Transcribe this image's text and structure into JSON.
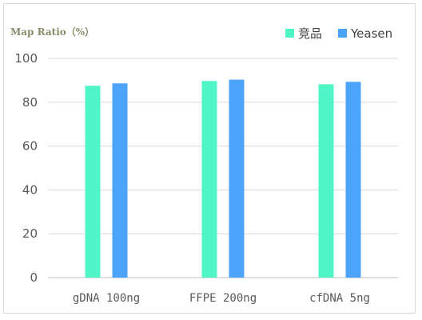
{
  "chart_data": {
    "type": "bar",
    "ylabel": "Map Ratio（%）",
    "categories": [
      "gDNA 100ng",
      "FFPE 200ng",
      "cfDNA 5ng"
    ],
    "series": [
      {
        "name": "竞品",
        "color": "#4FF5C7",
        "values": [
          87.5,
          89.7,
          88.2
        ]
      },
      {
        "name": "Yeasen",
        "color": "#4CA3FA",
        "values": [
          88.6,
          90.3,
          89.3
        ]
      }
    ],
    "ylim": [
      0,
      100
    ],
    "yticks": [
      0,
      20,
      40,
      60,
      80,
      100
    ],
    "grid": true,
    "legend": "top-right"
  }
}
